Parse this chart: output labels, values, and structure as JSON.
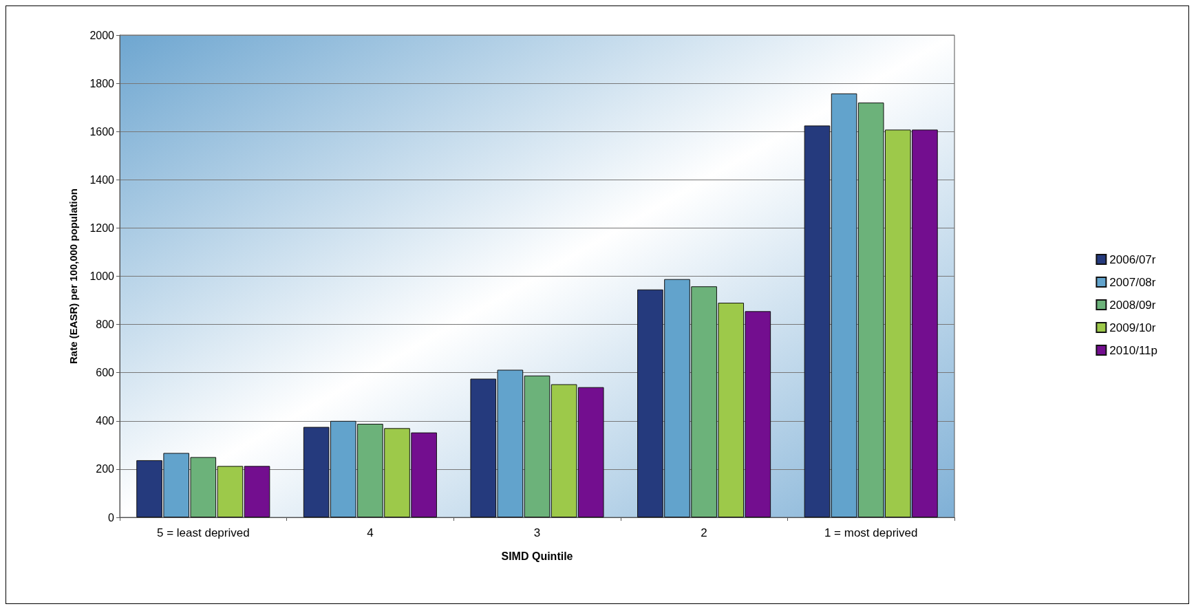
{
  "chart_data": {
    "type": "bar",
    "xlabel": "SIMD Quintile",
    "ylabel": "Rate (EASR) per 100,000 population",
    "categories": [
      "5 = least deprived",
      "4",
      "3",
      "2",
      "1 = most deprived"
    ],
    "series": [
      {
        "name": "2006/07r",
        "color": "#253a7d",
        "values": [
          237,
          375,
          575,
          945,
          1625
        ]
      },
      {
        "name": "2007/08r",
        "color": "#62a3cc",
        "values": [
          267,
          400,
          612,
          988,
          1758
        ]
      },
      {
        "name": "2008/09r",
        "color": "#6cb27a",
        "values": [
          250,
          388,
          588,
          958,
          1720
        ]
      },
      {
        "name": "2009/10r",
        "color": "#9dc94a",
        "values": [
          213,
          370,
          552,
          890,
          1608
        ]
      },
      {
        "name": "2010/11p",
        "color": "#730e8f",
        "values": [
          213,
          352,
          540,
          855,
          1608
        ]
      }
    ],
    "ylim": [
      0,
      2000
    ],
    "yticks": [
      0,
      200,
      400,
      600,
      800,
      1000,
      1200,
      1400,
      1600,
      1800,
      2000
    ],
    "grid": "y",
    "legend": "right"
  }
}
